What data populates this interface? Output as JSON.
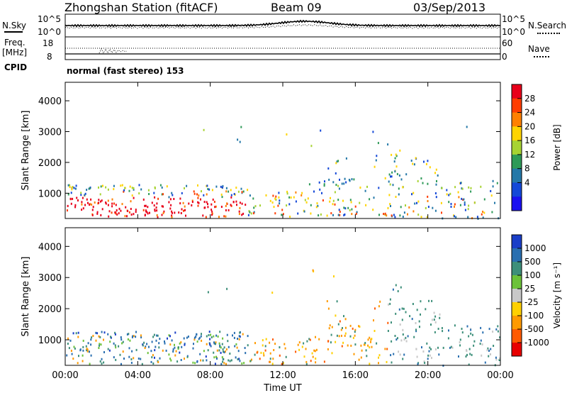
{
  "header": {
    "station": "Zhongshan Station (fitACF)",
    "beam": "Beam 09",
    "date": "03/Sep/2013"
  },
  "sky_panel": {
    "left_label": "N.Sky",
    "left_ticks": [
      "10^5",
      "10^0"
    ],
    "right_label": "N.Search",
    "right_ticks": [
      "10^5",
      "10^0"
    ]
  },
  "freq_panel": {
    "left_label_top": "Freq.",
    "left_label_unit": "[MHz]",
    "left_ticks": [
      "18",
      "8"
    ],
    "right_label": "Nave",
    "right_ticks": [
      "60",
      "0"
    ]
  },
  "cpid": {
    "label": "CPID",
    "mode": "normal (fast stereo) 153"
  },
  "chart_data": [
    {
      "type": "heatmap",
      "title": "",
      "ylabel": "Slant Range [km]",
      "ylim": [
        180,
        4600
      ],
      "yticks": [
        "4000",
        "3000",
        "2000",
        "1000"
      ],
      "colorbar": {
        "label": "Power [dB]",
        "ticks": [
          "28",
          "24",
          "20",
          "16",
          "12",
          "8",
          "4"
        ],
        "colors": [
          "#e8001a",
          "#ff3d00",
          "#ff8000",
          "#ffd400",
          "#a7d332",
          "#2e9a58",
          "#2478a8",
          "#1448d8",
          "#1a10f0"
        ],
        "range": [
          0,
          32
        ]
      }
    },
    {
      "type": "heatmap",
      "title": "",
      "ylabel": "Slant Range [km]",
      "ylim": [
        180,
        4600
      ],
      "yticks": [
        "4000",
        "3000",
        "2000",
        "1000"
      ],
      "xlabel": "Time UT",
      "xticks": [
        "00:00",
        "04:00",
        "08:00",
        "12:00",
        "16:00",
        "20:00",
        "00:00"
      ],
      "colorbar": {
        "label": "Velocity [m s⁻¹]",
        "ticks": [
          "1000",
          "500",
          "100",
          "25",
          "-25",
          "-100",
          "-500",
          "-1000"
        ],
        "colors": [
          "#1a3ec8",
          "#2a6fb0",
          "#3d8f7a",
          "#6cc23a",
          "#c8c8c8",
          "#ffd000",
          "#ff9a00",
          "#ff5a00",
          "#e80000"
        ]
      }
    }
  ]
}
